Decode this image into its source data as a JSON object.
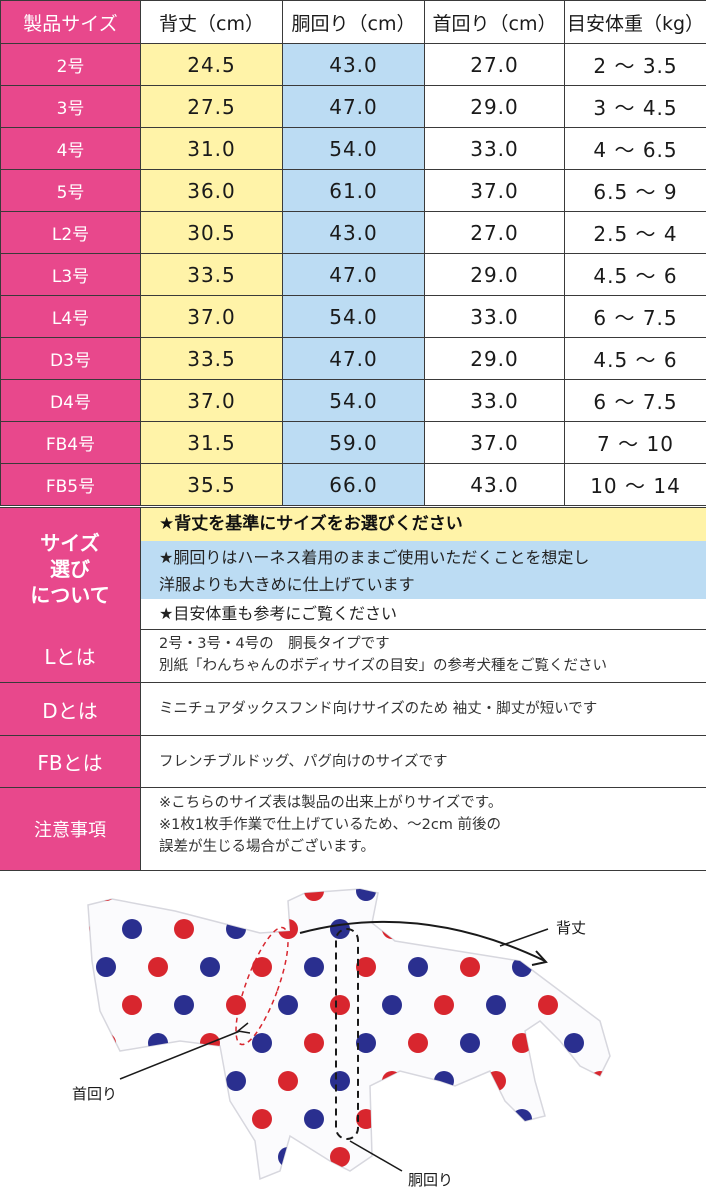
{
  "table": {
    "headers": [
      "製品サイズ",
      "背丈（cm）",
      "胴回り（cm）",
      "首回り（cm）",
      "目安体重（kg）"
    ],
    "rows": [
      {
        "size": "2号",
        "back": "24.5",
        "chest": "43.0",
        "neck": "27.0",
        "weight": "2 〜 3.5"
      },
      {
        "size": "3号",
        "back": "27.5",
        "chest": "47.0",
        "neck": "29.0",
        "weight": "3 〜 4.5"
      },
      {
        "size": "4号",
        "back": "31.0",
        "chest": "54.0",
        "neck": "33.0",
        "weight": "4 〜 6.5"
      },
      {
        "size": "5号",
        "back": "36.0",
        "chest": "61.0",
        "neck": "37.0",
        "weight": "6.5 〜 9"
      },
      {
        "size": "L2号",
        "back": "30.5",
        "chest": "43.0",
        "neck": "27.0",
        "weight": "2.5 〜 4"
      },
      {
        "size": "L3号",
        "back": "33.5",
        "chest": "47.0",
        "neck": "29.0",
        "weight": "4.5 〜 6"
      },
      {
        "size": "L4号",
        "back": "37.0",
        "chest": "54.0",
        "neck": "33.0",
        "weight": "6 〜 7.5"
      },
      {
        "size": "D3号",
        "back": "33.5",
        "chest": "47.0",
        "neck": "29.0",
        "weight": "4.5 〜 6"
      },
      {
        "size": "D4号",
        "back": "37.0",
        "chest": "54.0",
        "neck": "33.0",
        "weight": "6 〜 7.5"
      },
      {
        "size": "FB4号",
        "back": "31.5",
        "chest": "59.0",
        "neck": "37.0",
        "weight": "7 〜 10"
      },
      {
        "size": "FB5号",
        "back": "35.5",
        "chest": "66.0",
        "neck": "43.0",
        "weight": "10 〜 14"
      }
    ]
  },
  "choose": {
    "label": "サイズ選びについて",
    "label_lines": [
      "サイズ",
      "選び",
      "について"
    ],
    "line1": "★背丈を基準にサイズをお選びください",
    "line2a": "★胴回りはハーネス着用のままご使用いただくことを想定し",
    "line2b": "洋服よりも大きめに仕上げています",
    "line3": "★目安体重も参考にご覧ください"
  },
  "notes": {
    "l": {
      "label": "Lとは",
      "line1": "2号・3号・4号の　胴長タイプです",
      "line2": "別紙「わんちゃんのボディサイズの目安」の参考犬種をご覧ください"
    },
    "d": {
      "label": "Dとは",
      "text": "ミニチュアダックスフンド向けサイズのため 袖丈・脚丈が短いです"
    },
    "fb": {
      "label": "FBとは",
      "text": "フレンチブルドッグ、パグ向けのサイズです"
    },
    "caution": {
      "label": "注意事項",
      "line1": "※こちらのサイズ表は製品の出来上がりサイズです。",
      "line2": "※1枚1枚手作業で仕上げているため、〜2cm 前後の",
      "line3": "誤差が生じる場合がございます。"
    }
  },
  "diagram": {
    "back_label": "背丈",
    "neck_label": "首回り",
    "chest_label": "胴回り"
  },
  "colors": {
    "pink": "#e8488c",
    "yellow": "#fff3a8",
    "blue": "#bcdcf3",
    "dot_red": "#d8262e",
    "dot_navy": "#2a2f8f"
  }
}
